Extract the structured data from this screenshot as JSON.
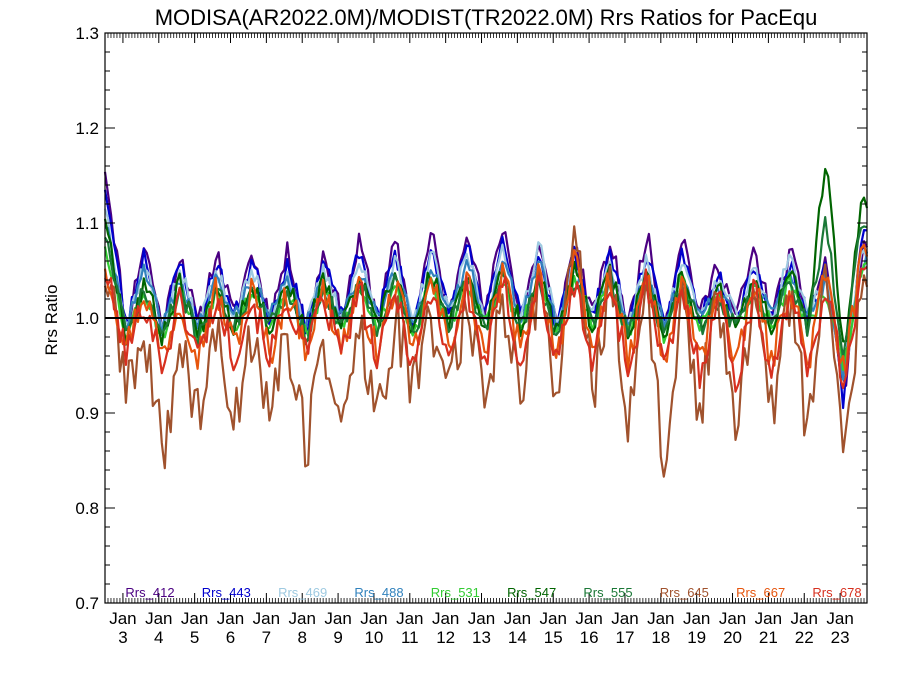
{
  "chart_data": {
    "type": "line",
    "title": "MODISA(AR2022.0M)/MODIST(TR2022.0M)  Rrs Ratios for PacEqu",
    "xlabel": "",
    "ylabel": "Rrs Ratio",
    "ylim": [
      0.7,
      1.3
    ],
    "yticks": [
      "0.7",
      "0.8",
      "0.9",
      "1.0",
      "1.1",
      "1.2",
      "1.3"
    ],
    "xlim": [
      2002.5,
      2023.75
    ],
    "xticks": [
      {
        "month": "Jan",
        "year": "3"
      },
      {
        "month": "Jan",
        "year": "4"
      },
      {
        "month": "Jan",
        "year": "5"
      },
      {
        "month": "Jan",
        "year": "6"
      },
      {
        "month": "Jan",
        "year": "7"
      },
      {
        "month": "Jan",
        "year": "8"
      },
      {
        "month": "Jan",
        "year": "9"
      },
      {
        "month": "Jan",
        "year": "10"
      },
      {
        "month": "Jan",
        "year": "11"
      },
      {
        "month": "Jan",
        "year": "12"
      },
      {
        "month": "Jan",
        "year": "13"
      },
      {
        "month": "Jan",
        "year": "14"
      },
      {
        "month": "Jan",
        "year": "15"
      },
      {
        "month": "Jan",
        "year": "16"
      },
      {
        "month": "Jan",
        "year": "17"
      },
      {
        "month": "Jan",
        "year": "18"
      },
      {
        "month": "Jan",
        "year": "19"
      },
      {
        "month": "Jan",
        "year": "20"
      },
      {
        "month": "Jan",
        "year": "21"
      },
      {
        "month": "Jan",
        "year": "22"
      },
      {
        "month": "Jan",
        "year": "23"
      }
    ],
    "reference_line": {
      "y": 1.0,
      "color": "#000000"
    },
    "grid": false,
    "legend_placement": "bottom",
    "series": [
      {
        "name": "Rrs_412",
        "color": "#4b0082",
        "amp": 0.045,
        "offset": 1.035,
        "noise": 0.012,
        "phase": 0.0,
        "seed": 11,
        "x": [
          2002.5,
          2003.1,
          2003.6,
          2004.1,
          2004.6,
          2005.1,
          2005.6,
          2006.1,
          2006.6,
          2007.1,
          2007.6,
          2008.1,
          2008.6,
          2009.1,
          2009.6,
          2010.1,
          2010.6,
          2011.1,
          2011.6,
          2012.1,
          2012.6,
          2013.1,
          2013.6,
          2014.1,
          2014.6,
          2015.1,
          2015.6,
          2016.1,
          2016.6,
          2017.1,
          2017.6,
          2018.1,
          2018.6,
          2019.1,
          2019.6,
          2020.1,
          2020.6,
          2021.1,
          2021.6,
          2022.1,
          2022.6,
          2023.1,
          2023.6
        ],
        "y": [
          1.16,
          0.99,
          1.08,
          0.99,
          1.07,
          0.99,
          1.07,
          1.0,
          1.07,
          1.0,
          1.07,
          0.99,
          1.07,
          1.0,
          1.08,
          1.0,
          1.08,
          0.99,
          1.09,
          1.0,
          1.1,
          1.0,
          1.1,
          1.0,
          1.08,
          0.99,
          1.08,
          1.0,
          1.08,
          0.99,
          1.09,
          0.99,
          1.09,
          1.0,
          1.06,
          1.0,
          1.07,
          1.0,
          1.07,
          1.0,
          1.06,
          0.92,
          1.07
        ]
      },
      {
        "name": "Rrs_443",
        "color": "#0000cd",
        "amp": 0.04,
        "offset": 1.03,
        "noise": 0.01,
        "phase": 0.02,
        "seed": 23,
        "x": [
          2002.5,
          2003.1,
          2003.6,
          2004.1,
          2004.6,
          2005.1,
          2005.6,
          2006.1,
          2006.6,
          2007.1,
          2007.6,
          2008.1,
          2008.6,
          2009.1,
          2009.6,
          2010.1,
          2010.6,
          2011.1,
          2011.6,
          2012.1,
          2012.6,
          2013.1,
          2013.6,
          2014.1,
          2014.6,
          2015.1,
          2015.6,
          2016.1,
          2016.6,
          2017.1,
          2017.6,
          2018.1,
          2018.6,
          2019.1,
          2019.6,
          2020.1,
          2020.6,
          2021.1,
          2021.6,
          2022.1,
          2022.6,
          2023.1,
          2023.6
        ],
        "y": [
          1.14,
          0.99,
          1.07,
          0.99,
          1.06,
          0.99,
          1.06,
          1.0,
          1.06,
          1.0,
          1.06,
          0.99,
          1.06,
          1.0,
          1.07,
          1.0,
          1.07,
          0.99,
          1.08,
          1.0,
          1.08,
          1.0,
          1.08,
          1.0,
          1.07,
          0.99,
          1.07,
          1.0,
          1.07,
          0.99,
          1.07,
          0.99,
          1.07,
          1.0,
          1.05,
          1.0,
          1.06,
          1.0,
          1.06,
          1.0,
          1.05,
          0.91,
          1.09
        ]
      },
      {
        "name": "Rrs_469",
        "color": "#9ecae1",
        "amp": 0.035,
        "offset": 1.025,
        "noise": 0.01,
        "phase": 0.03,
        "seed": 37,
        "x": [
          2002.5,
          2003.1,
          2003.6,
          2004.1,
          2004.6,
          2005.1,
          2005.6,
          2006.1,
          2006.6,
          2007.1,
          2007.6,
          2008.1,
          2008.6,
          2009.1,
          2009.6,
          2010.1,
          2010.6,
          2011.1,
          2011.6,
          2012.1,
          2012.6,
          2013.1,
          2013.6,
          2014.1,
          2014.6,
          2015.1,
          2015.6,
          2016.1,
          2016.6,
          2017.1,
          2017.6,
          2018.1,
          2018.6,
          2019.1,
          2019.6,
          2020.1,
          2020.6,
          2021.1,
          2021.6,
          2022.1,
          2022.6,
          2023.1,
          2023.6
        ],
        "y": [
          1.12,
          0.99,
          1.06,
          0.99,
          1.05,
          0.99,
          1.05,
          1.0,
          1.05,
          1.0,
          1.05,
          0.99,
          1.05,
          1.0,
          1.06,
          1.0,
          1.06,
          0.99,
          1.07,
          1.0,
          1.07,
          1.0,
          1.07,
          1.0,
          1.08,
          0.99,
          1.06,
          1.0,
          1.06,
          0.99,
          1.06,
          0.99,
          1.06,
          1.0,
          1.04,
          1.0,
          1.05,
          1.0,
          1.07,
          1.0,
          1.05,
          0.93,
          1.07
        ]
      },
      {
        "name": "Rrs_488",
        "color": "#3182bd",
        "amp": 0.03,
        "offset": 1.02,
        "noise": 0.01,
        "phase": 0.04,
        "seed": 41,
        "x": [
          2002.5,
          2003.1,
          2003.6,
          2004.1,
          2004.6,
          2005.1,
          2005.6,
          2006.1,
          2006.6,
          2007.1,
          2007.6,
          2008.1,
          2008.6,
          2009.1,
          2009.6,
          2010.1,
          2010.6,
          2011.1,
          2011.6,
          2012.1,
          2012.6,
          2013.1,
          2013.6,
          2014.1,
          2014.6,
          2015.1,
          2015.6,
          2016.1,
          2016.6,
          2017.1,
          2017.6,
          2018.1,
          2018.6,
          2019.1,
          2019.6,
          2020.1,
          2020.6,
          2021.1,
          2021.6,
          2022.1,
          2022.6,
          2023.1,
          2023.6
        ],
        "y": [
          1.1,
          0.99,
          1.05,
          0.99,
          1.04,
          0.99,
          1.04,
          1.0,
          1.04,
          1.0,
          1.04,
          0.99,
          1.04,
          1.0,
          1.05,
          1.0,
          1.05,
          0.99,
          1.06,
          1.0,
          1.06,
          1.0,
          1.06,
          1.0,
          1.06,
          0.99,
          1.05,
          1.0,
          1.05,
          0.99,
          1.05,
          0.99,
          1.05,
          1.0,
          1.03,
          1.0,
          1.04,
          1.0,
          1.05,
          1.0,
          1.04,
          0.94,
          1.06
        ]
      },
      {
        "name": "Rrs_531",
        "color": "#33cc33",
        "amp": 0.025,
        "offset": 1.01,
        "noise": 0.01,
        "phase": 0.05,
        "seed": 53,
        "x": [
          2002.5,
          2003.1,
          2003.6,
          2004.1,
          2004.6,
          2005.1,
          2005.6,
          2006.1,
          2006.6,
          2007.1,
          2007.6,
          2008.1,
          2008.6,
          2009.1,
          2009.6,
          2010.1,
          2010.6,
          2011.1,
          2011.6,
          2012.1,
          2012.6,
          2013.1,
          2013.6,
          2014.1,
          2014.6,
          2015.1,
          2015.6,
          2016.1,
          2016.6,
          2017.1,
          2017.6,
          2018.1,
          2018.6,
          2019.1,
          2019.6,
          2020.1,
          2020.6,
          2021.1,
          2021.6,
          2022.1,
          2022.6,
          2023.1,
          2023.6
        ],
        "y": [
          1.08,
          0.98,
          1.03,
          0.98,
          1.03,
          0.98,
          1.03,
          0.99,
          1.03,
          0.99,
          1.03,
          0.98,
          1.03,
          0.99,
          1.03,
          0.99,
          1.04,
          0.98,
          1.04,
          0.99,
          1.04,
          0.99,
          1.04,
          0.99,
          1.04,
          0.98,
          1.04,
          0.99,
          1.04,
          0.98,
          1.04,
          0.98,
          1.04,
          0.99,
          1.02,
          0.99,
          1.03,
          0.99,
          1.04,
          0.99,
          1.03,
          0.95,
          1.05
        ]
      },
      {
        "name": "Rrs_547",
        "color": "#006400",
        "amp": 0.025,
        "offset": 1.015,
        "noise": 0.012,
        "phase": 0.06,
        "seed": 67,
        "x": [
          2002.5,
          2003.1,
          2003.6,
          2004.1,
          2004.6,
          2005.1,
          2005.6,
          2006.1,
          2006.6,
          2007.1,
          2007.6,
          2008.1,
          2008.6,
          2009.1,
          2009.6,
          2010.1,
          2010.6,
          2011.1,
          2011.6,
          2012.1,
          2012.6,
          2013.1,
          2013.6,
          2014.1,
          2014.6,
          2015.1,
          2015.6,
          2016.1,
          2016.6,
          2017.1,
          2017.6,
          2018.1,
          2018.6,
          2019.1,
          2019.6,
          2020.1,
          2020.6,
          2021.1,
          2021.6,
          2022.1,
          2022.6,
          2023.1,
          2023.6
        ],
        "y": [
          1.11,
          0.98,
          1.04,
          0.98,
          1.04,
          0.98,
          1.04,
          0.99,
          1.04,
          0.99,
          1.04,
          0.98,
          1.04,
          0.99,
          1.04,
          0.99,
          1.05,
          0.98,
          1.05,
          0.99,
          1.05,
          0.99,
          1.05,
          0.99,
          1.05,
          0.98,
          1.05,
          0.99,
          1.05,
          0.98,
          1.05,
          0.98,
          1.05,
          0.99,
          1.03,
          0.99,
          1.04,
          0.99,
          1.05,
          0.99,
          1.17,
          0.96,
          1.12
        ]
      },
      {
        "name": "Rrs_555",
        "color": "#1b7837",
        "amp": 0.022,
        "offset": 1.012,
        "noise": 0.011,
        "phase": 0.07,
        "seed": 71,
        "x": [
          2002.5,
          2003.1,
          2003.6,
          2004.1,
          2004.6,
          2005.1,
          2005.6,
          2006.1,
          2006.6,
          2007.1,
          2007.6,
          2008.1,
          2008.6,
          2009.1,
          2009.6,
          2010.1,
          2010.6,
          2011.1,
          2011.6,
          2012.1,
          2012.6,
          2013.1,
          2013.6,
          2014.1,
          2014.6,
          2015.1,
          2015.6,
          2016.1,
          2016.6,
          2017.1,
          2017.6,
          2018.1,
          2018.6,
          2019.1,
          2019.6,
          2020.1,
          2020.6,
          2021.1,
          2021.6,
          2022.1,
          2022.6,
          2023.1,
          2023.6
        ],
        "y": [
          1.09,
          0.98,
          1.03,
          0.98,
          1.03,
          0.98,
          1.03,
          0.99,
          1.03,
          0.99,
          1.03,
          0.98,
          1.03,
          0.99,
          1.04,
          0.99,
          1.04,
          0.98,
          1.04,
          0.99,
          1.04,
          0.99,
          1.04,
          0.99,
          1.04,
          0.98,
          1.04,
          0.99,
          1.04,
          0.98,
          1.04,
          0.98,
          1.04,
          0.99,
          1.02,
          0.99,
          1.03,
          0.99,
          1.04,
          0.99,
          1.1,
          0.96,
          1.1
        ]
      },
      {
        "name": "Rrs_645",
        "color": "#a0522d",
        "amp": 0.06,
        "offset": 0.95,
        "noise": 0.035,
        "phase": 0.1,
        "seed": 89,
        "x": [
          2002.5,
          2003.1,
          2003.6,
          2004.1,
          2004.6,
          2005.1,
          2005.6,
          2006.1,
          2006.6,
          2007.1,
          2007.6,
          2008.1,
          2008.6,
          2009.1,
          2009.6,
          2010.1,
          2010.6,
          2011.1,
          2011.6,
          2012.1,
          2012.6,
          2013.1,
          2013.6,
          2014.1,
          2014.6,
          2015.1,
          2015.6,
          2016.1,
          2016.6,
          2017.1,
          2017.6,
          2018.1,
          2018.6,
          2019.1,
          2019.6,
          2020.1,
          2020.6,
          2021.1,
          2021.6,
          2022.1,
          2022.6,
          2023.1,
          2023.6
        ],
        "y": [
          1.05,
          0.93,
          0.97,
          0.86,
          0.97,
          0.9,
          0.98,
          0.89,
          0.99,
          0.91,
          0.98,
          0.86,
          0.98,
          0.88,
          0.99,
          0.89,
          1.0,
          0.92,
          1.0,
          0.94,
          1.01,
          0.92,
          1.02,
          0.93,
          1.03,
          0.93,
          1.1,
          0.92,
          1.03,
          0.9,
          1.02,
          0.85,
          1.02,
          0.9,
          1.03,
          0.86,
          1.03,
          0.9,
          1.03,
          0.88,
          1.04,
          0.87,
          1.02
        ]
      },
      {
        "name": "Rrs_667",
        "color": "#e6550d",
        "amp": 0.03,
        "offset": 0.995,
        "noise": 0.018,
        "phase": 0.12,
        "seed": 97,
        "x": [
          2002.5,
          2003.1,
          2003.6,
          2004.1,
          2004.6,
          2005.1,
          2005.6,
          2006.1,
          2006.6,
          2007.1,
          2007.6,
          2008.1,
          2008.6,
          2009.1,
          2009.6,
          2010.1,
          2010.6,
          2011.1,
          2011.6,
          2012.1,
          2012.6,
          2013.1,
          2013.6,
          2014.1,
          2014.6,
          2015.1,
          2015.6,
          2016.1,
          2016.6,
          2017.1,
          2017.6,
          2018.1,
          2018.6,
          2019.1,
          2019.6,
          2020.1,
          2020.6,
          2021.1,
          2021.6,
          2022.1,
          2022.6,
          2023.1,
          2023.6
        ],
        "y": [
          1.06,
          0.97,
          1.03,
          0.96,
          1.02,
          0.96,
          1.03,
          0.97,
          1.03,
          0.96,
          1.03,
          0.97,
          1.03,
          0.97,
          1.03,
          0.96,
          1.04,
          0.96,
          1.04,
          0.97,
          1.04,
          0.96,
          1.05,
          0.96,
          1.05,
          0.96,
          1.06,
          0.96,
          1.05,
          0.95,
          1.05,
          0.95,
          1.04,
          0.95,
          1.04,
          0.94,
          1.04,
          0.95,
          1.04,
          0.95,
          1.05,
          0.94,
          1.06
        ]
      },
      {
        "name": "Rrs_678",
        "color": "#d7301f",
        "amp": 0.03,
        "offset": 0.99,
        "noise": 0.018,
        "phase": 0.14,
        "seed": 101,
        "x": [
          2002.5,
          2003.1,
          2003.6,
          2004.1,
          2004.6,
          2005.1,
          2005.6,
          2006.1,
          2006.6,
          2007.1,
          2007.6,
          2008.1,
          2008.6,
          2009.1,
          2009.6,
          2010.1,
          2010.6,
          2011.1,
          2011.6,
          2012.1,
          2012.6,
          2013.1,
          2013.6,
          2014.1,
          2014.6,
          2015.1,
          2015.6,
          2016.1,
          2016.6,
          2017.1,
          2017.6,
          2018.1,
          2018.6,
          2019.1,
          2019.6,
          2020.1,
          2020.6,
          2021.1,
          2021.6,
          2022.1,
          2022.6,
          2023.1,
          2023.6
        ],
        "y": [
          1.05,
          0.96,
          1.02,
          0.95,
          1.02,
          0.96,
          1.02,
          0.96,
          1.02,
          0.96,
          1.02,
          0.96,
          1.02,
          0.96,
          1.03,
          0.95,
          1.03,
          0.95,
          1.03,
          0.96,
          1.03,
          0.95,
          1.04,
          0.95,
          1.04,
          0.95,
          1.04,
          0.95,
          1.04,
          0.94,
          1.04,
          0.94,
          1.03,
          0.94,
          1.03,
          0.93,
          1.03,
          0.94,
          1.03,
          0.94,
          1.04,
          0.93,
          1.05
        ]
      }
    ]
  }
}
